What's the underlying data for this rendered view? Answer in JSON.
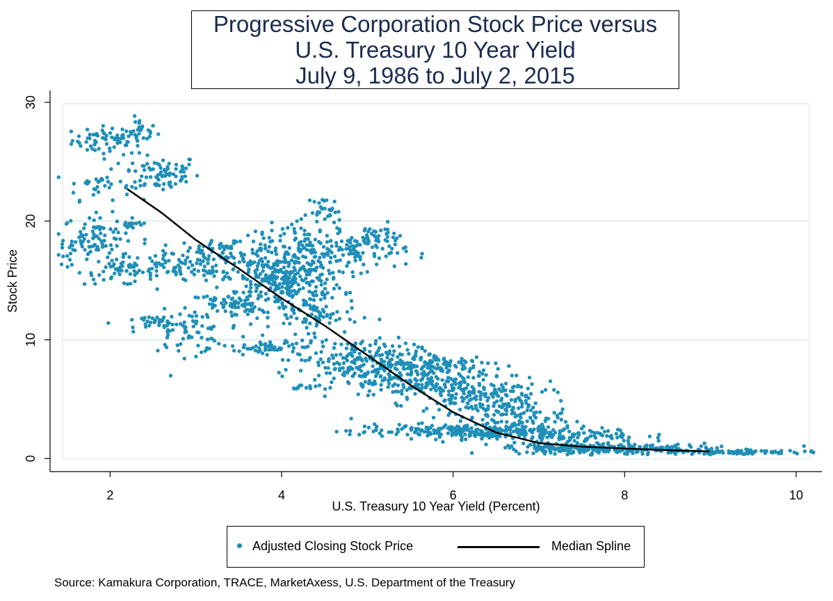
{
  "colors": {
    "points": "#1f8fb8",
    "spline": "#000000",
    "title": "#1a2b4f",
    "grid": "#e6eef0"
  },
  "chart_data": {
    "type": "scatter",
    "title": [
      "Progressive Corporation Stock Price versus",
      "U.S. Treasury 10 Year Yield",
      "July 9, 1986 to July 2, 2015"
    ],
    "xlabel": "U.S. Treasury 10 Year Yield (Percent)",
    "ylabel": "Stock Price",
    "xlim": [
      1.3,
      10.3
    ],
    "ylim": [
      -1.1,
      31.0
    ],
    "xticks": [
      2,
      4,
      6,
      8,
      10
    ],
    "xtick_labels": [
      "2",
      "4",
      "6",
      "8",
      "10"
    ],
    "yticks": [
      0,
      10,
      20,
      30
    ],
    "ytick_labels": [
      "0",
      "10",
      "20",
      "30"
    ],
    "grid": true,
    "legend_position": "bottom",
    "series": [
      {
        "name": "Adjusted Closing Stock Price",
        "kind": "scatter",
        "clusters": [
          {
            "cx": 2.0,
            "cy": 26.8,
            "sx": 0.22,
            "sy": 0.6,
            "n": 70
          },
          {
            "cx": 2.35,
            "cy": 27.6,
            "sx": 0.1,
            "sy": 0.5,
            "n": 20
          },
          {
            "cx": 2.6,
            "cy": 24.0,
            "sx": 0.22,
            "sy": 0.8,
            "n": 80
          },
          {
            "cx": 1.85,
            "cy": 23.0,
            "sx": 0.2,
            "sy": 0.6,
            "n": 30
          },
          {
            "cx": 1.85,
            "cy": 18.7,
            "sx": 0.2,
            "sy": 0.9,
            "n": 80
          },
          {
            "cx": 1.55,
            "cy": 17.2,
            "sx": 0.12,
            "sy": 0.4,
            "n": 15
          },
          {
            "cx": 2.1,
            "cy": 15.8,
            "sx": 0.2,
            "sy": 0.6,
            "n": 50
          },
          {
            "cx": 2.25,
            "cy": 19.8,
            "sx": 0.12,
            "sy": 0.2,
            "n": 12
          },
          {
            "cx": 2.8,
            "cy": 16.0,
            "sx": 0.35,
            "sy": 0.6,
            "n": 80
          },
          {
            "cx": 3.4,
            "cy": 17.6,
            "sx": 0.35,
            "sy": 0.5,
            "n": 70
          },
          {
            "cx": 2.85,
            "cy": 10.6,
            "sx": 0.25,
            "sy": 0.9,
            "n": 60
          },
          {
            "cx": 2.5,
            "cy": 11.4,
            "sx": 0.25,
            "sy": 0.3,
            "n": 30
          },
          {
            "cx": 3.5,
            "cy": 12.9,
            "sx": 0.3,
            "sy": 0.6,
            "n": 80
          },
          {
            "cx": 4.0,
            "cy": 15.2,
            "sx": 0.35,
            "sy": 1.3,
            "n": 340
          },
          {
            "cx": 4.5,
            "cy": 20.8,
            "sx": 0.1,
            "sy": 0.6,
            "n": 30
          },
          {
            "cx": 4.3,
            "cy": 18.0,
            "sx": 0.3,
            "sy": 0.9,
            "n": 90
          },
          {
            "cx": 4.95,
            "cy": 17.5,
            "sx": 0.25,
            "sy": 0.8,
            "n": 80
          },
          {
            "cx": 5.1,
            "cy": 18.9,
            "sx": 0.12,
            "sy": 0.4,
            "n": 25
          },
          {
            "cx": 3.9,
            "cy": 9.3,
            "sx": 0.3,
            "sy": 0.4,
            "n": 60
          },
          {
            "cx": 4.4,
            "cy": 12.0,
            "sx": 0.25,
            "sy": 0.7,
            "n": 60
          },
          {
            "cx": 4.9,
            "cy": 8.3,
            "sx": 0.35,
            "sy": 0.9,
            "n": 190
          },
          {
            "cx": 5.5,
            "cy": 6.6,
            "sx": 0.3,
            "sy": 0.9,
            "n": 160
          },
          {
            "cx": 5.9,
            "cy": 7.9,
            "sx": 0.35,
            "sy": 0.5,
            "n": 90
          },
          {
            "cx": 6.3,
            "cy": 5.6,
            "sx": 0.35,
            "sy": 0.9,
            "n": 160
          },
          {
            "cx": 6.7,
            "cy": 3.6,
            "sx": 0.3,
            "sy": 0.8,
            "n": 120
          },
          {
            "cx": 4.3,
            "cy": 6.0,
            "sx": 0.15,
            "sy": 0.1,
            "n": 14
          },
          {
            "cx": 6.0,
            "cy": 2.3,
            "sx": 0.6,
            "sy": 0.3,
            "n": 200
          },
          {
            "cx": 7.2,
            "cy": 2.0,
            "sx": 0.5,
            "sy": 0.3,
            "n": 120
          },
          {
            "cx": 7.3,
            "cy": 0.9,
            "sx": 0.35,
            "sy": 0.25,
            "n": 130
          },
          {
            "cx": 8.2,
            "cy": 0.8,
            "sx": 0.5,
            "sy": 0.2,
            "n": 150
          },
          {
            "cx": 9.3,
            "cy": 0.55,
            "sx": 0.4,
            "sy": 0.1,
            "n": 80
          },
          {
            "cx": 10.0,
            "cy": 0.6,
            "sx": 0.15,
            "sy": 0.05,
            "n": 8
          }
        ]
      },
      {
        "name": "Median Spline",
        "kind": "line",
        "x": [
          2.2,
          2.6,
          3.0,
          3.5,
          4.0,
          4.5,
          5.0,
          5.5,
          6.0,
          6.5,
          7.0,
          7.5,
          8.0,
          8.5,
          9.0
        ],
        "y": [
          22.7,
          20.7,
          18.4,
          16.0,
          13.5,
          11.2,
          8.7,
          6.2,
          3.9,
          2.2,
          1.3,
          1.0,
          0.85,
          0.7,
          0.6
        ]
      }
    ]
  },
  "legend": {
    "items": [
      {
        "label": "Adjusted Closing Stock Price"
      },
      {
        "label": "Median Spline"
      }
    ]
  },
  "source": "Source: Kamakura Corporation, TRACE, MarketAxess, U.S. Department of the Treasury"
}
